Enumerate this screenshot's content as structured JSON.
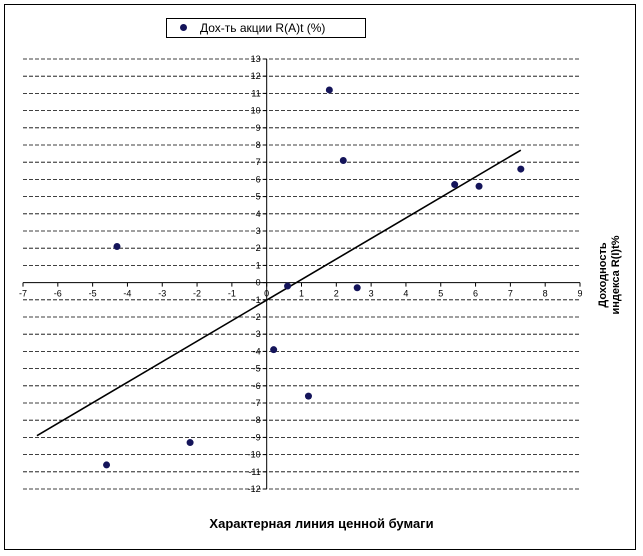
{
  "chart_data": {
    "type": "scatter",
    "xlabel": "Характерная линия ценной бумаги",
    "ylabel_line1": "Доходность",
    "ylabel_line2": "индекса R(I)t%",
    "xlim": [
      -7,
      9
    ],
    "ylim": [
      -12,
      13
    ],
    "x_ticks": [
      -7,
      -6,
      -5,
      -4,
      -3,
      -2,
      -1,
      0,
      1,
      2,
      3,
      4,
      5,
      6,
      7,
      8,
      9
    ],
    "y_ticks": [
      -12,
      -11,
      -10,
      -9,
      -8,
      -7,
      -6,
      -5,
      -4,
      -3,
      -2,
      -1,
      0,
      1,
      2,
      3,
      4,
      5,
      6,
      7,
      8,
      9,
      10,
      11,
      12,
      13
    ],
    "grid": "horizontal-dashed",
    "legend_position": "top-left",
    "series": [
      {
        "name": "Дох-ть акции R(A)t (%)",
        "color": "#14145a",
        "points": [
          {
            "x": -4.6,
            "y": -10.6
          },
          {
            "x": -4.3,
            "y": 2.1
          },
          {
            "x": -2.2,
            "y": -9.3
          },
          {
            "x": 0.2,
            "y": -3.9
          },
          {
            "x": 0.6,
            "y": -0.2
          },
          {
            "x": 1.2,
            "y": -6.6
          },
          {
            "x": 1.8,
            "y": 11.2
          },
          {
            "x": 2.2,
            "y": 7.1
          },
          {
            "x": 2.6,
            "y": -0.3
          },
          {
            "x": 5.4,
            "y": 5.7
          },
          {
            "x": 6.1,
            "y": 5.6
          },
          {
            "x": 7.3,
            "y": 6.6
          }
        ]
      }
    ],
    "trendline": {
      "x1": -6.6,
      "y1": -8.9,
      "x2": 7.3,
      "y2": 7.7,
      "color": "#000000"
    }
  }
}
